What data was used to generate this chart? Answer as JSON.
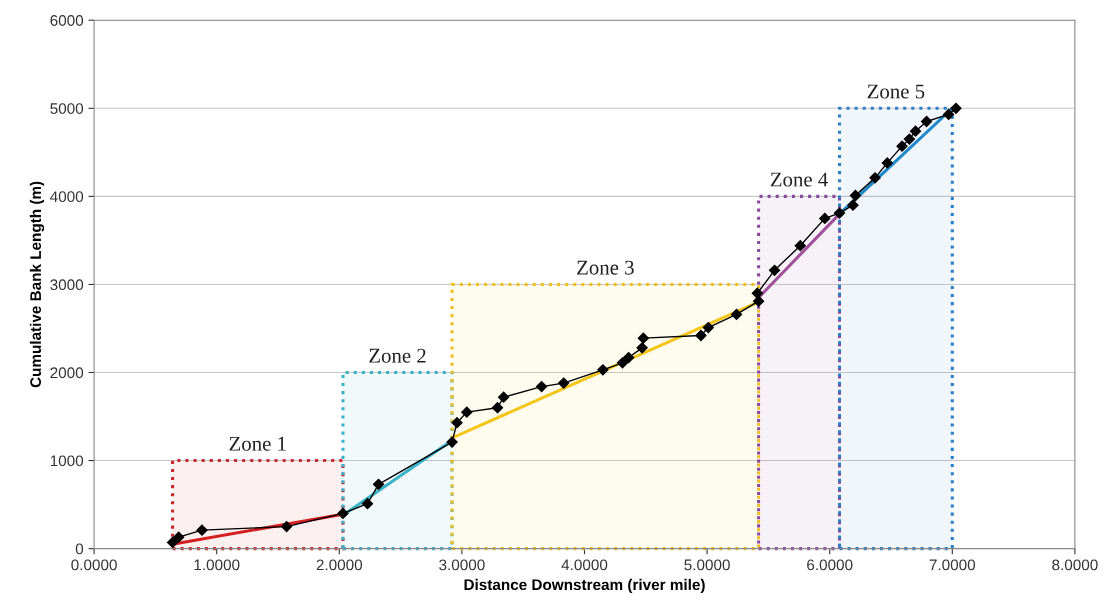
{
  "chart_data": {
    "type": "line",
    "xlabel": "Distance Downstream (river mile)",
    "ylabel": "Cumulative Bank Length (m)",
    "xlim": [
      0,
      8
    ],
    "ylim": [
      0,
      6000
    ],
    "xticks": [
      {
        "value": 0,
        "label": "0.0000"
      },
      {
        "value": 1,
        "label": "1.0000"
      },
      {
        "value": 2,
        "label": "2.0000"
      },
      {
        "value": 3,
        "label": "3.0000"
      },
      {
        "value": 4,
        "label": "4.0000"
      },
      {
        "value": 5,
        "label": "5.0000"
      },
      {
        "value": 6,
        "label": "6.0000"
      },
      {
        "value": 7,
        "label": "7.0000"
      },
      {
        "value": 8,
        "label": "8.0000"
      }
    ],
    "yticks": [
      0,
      1000,
      2000,
      3000,
      4000,
      5000,
      6000
    ],
    "grid": "y",
    "series": [
      {
        "color": "#000000",
        "marker": "diamond",
        "x": [
          0.64,
          0.69,
          0.88,
          1.57,
          2.03,
          2.23,
          2.32,
          2.92,
          2.96,
          3.04,
          3.29,
          3.34,
          3.65,
          3.83,
          4.15,
          4.31,
          4.36,
          4.47,
          4.48,
          4.95,
          5.01,
          5.24,
          5.42,
          5.41,
          5.55,
          5.76,
          5.96,
          6.08,
          6.19,
          6.21,
          6.37,
          6.47,
          6.59,
          6.65,
          6.7,
          6.79,
          6.97,
          7.03
        ],
        "values": [
          70,
          130,
          210,
          250,
          400,
          510,
          730,
          1210,
          1430,
          1550,
          1600,
          1720,
          1840,
          1880,
          2030,
          2110,
          2170,
          2280,
          2390,
          2420,
          2510,
          2660,
          2810,
          2900,
          3160,
          3440,
          3750,
          3810,
          3900,
          4010,
          4210,
          4380,
          4570,
          4650,
          4740,
          4850,
          4930,
          5000
        ]
      },
      {
        "color": "#d42020",
        "x": [
          0.64,
          2.03
        ],
        "values": [
          50,
          390
        ]
      },
      {
        "color": "#3cb4c8",
        "x": [
          2.03,
          2.92
        ],
        "values": [
          380,
          1230
        ]
      },
      {
        "color": "#f2c518",
        "x": [
          2.94,
          5.42
        ],
        "values": [
          1270,
          2800
        ]
      },
      {
        "color": "#a0509a",
        "x": [
          5.42,
          6.08
        ],
        "values": [
          2850,
          3800
        ]
      },
      {
        "color": "#1f88c8",
        "x": [
          6.08,
          7.0
        ],
        "values": [
          3800,
          5000
        ]
      }
    ],
    "bands": [
      {
        "axis": "x",
        "from": 0.64,
        "to": 2.03,
        "label": "Zone 1",
        "color": "#c8282d"
      },
      {
        "axis": "x",
        "from": 2.03,
        "to": 2.92,
        "label": "Zone 2",
        "color": "#3cb0c8"
      },
      {
        "axis": "x",
        "from": 2.92,
        "to": 5.42,
        "label": "Zone 3",
        "color": "#f0c020"
      },
      {
        "axis": "x",
        "from": 5.42,
        "to": 6.08,
        "label": "Zone 4",
        "color": "#8a4a9a"
      },
      {
        "axis": "x",
        "from": 6.08,
        "to": 7.0,
        "label": "Zone 5",
        "color": "#2a7fc8"
      }
    ]
  }
}
